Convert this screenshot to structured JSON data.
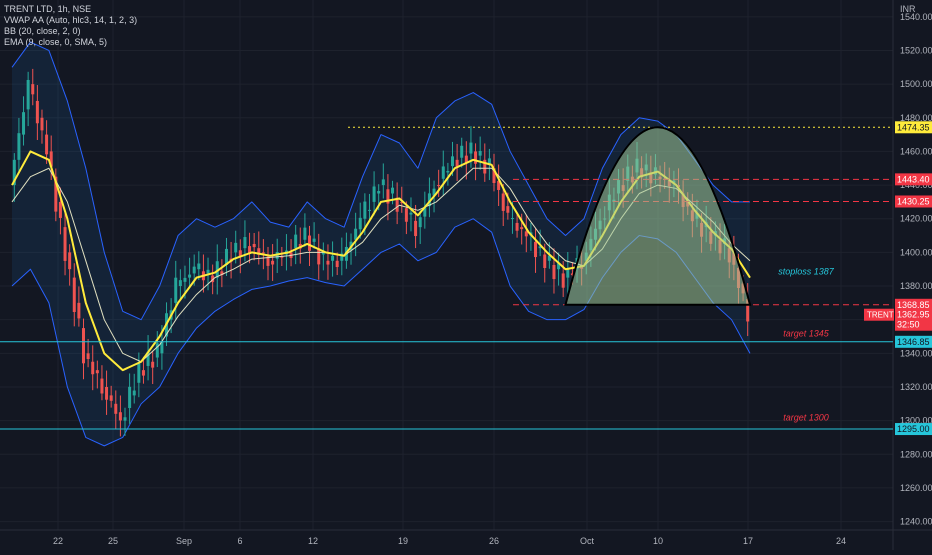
{
  "header": {
    "symbol": "TRENT LTD, 1h, NSE",
    "indicators": [
      "VWAP AA (Auto, hlc3, 14, 1, 2, 3)",
      "BB (20, close, 2, 0)",
      "EMA (9, close, 0, SMA, 5)"
    ],
    "currency": "INR"
  },
  "colors": {
    "background": "#131722",
    "up": "#26a69a",
    "down": "#ef5350",
    "bb_band": "#2962ff",
    "ema": "#ffeb3b",
    "vwap": "#e0e0c0",
    "level": "#26c6da",
    "dash_red": "#f23645",
    "dotted_yellow": "#ffeb3b"
  },
  "chart_data": {
    "type": "line",
    "title": "TRENT LTD, 1h, NSE",
    "ylim": [
      1235,
      1550
    ],
    "y_ticks": [
      1240,
      1260,
      1280,
      1300,
      1320,
      1340,
      1360,
      1380,
      1400,
      1420,
      1440,
      1460,
      1480,
      1500,
      1520,
      1540
    ],
    "x_ticks": [
      "22",
      "25",
      "Sep",
      "6",
      "12",
      "19",
      "26",
      "Oct",
      "10",
      "17",
      "24"
    ],
    "series": [
      {
        "role": "price",
        "values": [
          1440,
          1500,
          1460,
          1400,
          1340,
          1320,
          1300,
          1330,
          1340,
          1380,
          1390,
          1385,
          1400,
          1405,
          1395,
          1400,
          1410,
          1395,
          1395,
          1420,
          1440,
          1430,
          1415,
          1440,
          1455,
          1460,
          1450,
          1420,
          1410,
          1395,
          1385,
          1395,
          1420,
          1440,
          1450,
          1445,
          1440,
          1420,
          1410,
          1400,
          1363
        ]
      },
      {
        "role": "ema",
        "values": [
          1440,
          1460,
          1455,
          1420,
          1370,
          1340,
          1330,
          1335,
          1350,
          1370,
          1385,
          1388,
          1396,
          1400,
          1398,
          1400,
          1405,
          1400,
          1398,
          1412,
          1430,
          1432,
          1422,
          1435,
          1450,
          1455,
          1452,
          1430,
          1412,
          1400,
          1390,
          1392,
          1410,
          1430,
          1445,
          1448,
          1440,
          1425,
          1412,
          1402,
          1385
        ]
      },
      {
        "role": "vwap",
        "values": [
          1430,
          1445,
          1450,
          1430,
          1395,
          1360,
          1340,
          1335,
          1345,
          1362,
          1375,
          1385,
          1390,
          1396,
          1397,
          1398,
          1400,
          1400,
          1398,
          1406,
          1420,
          1428,
          1425,
          1430,
          1440,
          1450,
          1450,
          1438,
          1420,
          1405,
          1395,
          1392,
          1402,
          1420,
          1435,
          1440,
          1438,
          1428,
          1418,
          1405,
          1395
        ]
      },
      {
        "role": "bb_upper",
        "values": [
          1510,
          1525,
          1520,
          1490,
          1450,
          1400,
          1365,
          1360,
          1380,
          1410,
          1420,
          1415,
          1420,
          1430,
          1418,
          1415,
          1430,
          1420,
          1415,
          1445,
          1470,
          1465,
          1450,
          1480,
          1490,
          1495,
          1488,
          1460,
          1440,
          1420,
          1410,
          1420,
          1450,
          1470,
          1480,
          1478,
          1470,
          1455,
          1440,
          1430,
          1430
        ]
      },
      {
        "role": "bb_lower",
        "values": [
          1380,
          1390,
          1370,
          1320,
          1290,
          1285,
          1290,
          1310,
          1320,
          1340,
          1355,
          1365,
          1372,
          1378,
          1380,
          1383,
          1385,
          1382,
          1380,
          1390,
          1400,
          1405,
          1395,
          1400,
          1415,
          1420,
          1412,
          1380,
          1365,
          1360,
          1360,
          1366,
          1385,
          1400,
          1410,
          1408,
          1400,
          1385,
          1370,
          1360,
          1340
        ]
      }
    ],
    "levels": [
      {
        "price": 1474.35,
        "label": "1474.35",
        "style": "dotted",
        "color": "#ffeb3b"
      },
      {
        "price": 1443.4,
        "label": "1443.40",
        "style": "dashed",
        "color": "#f23645"
      },
      {
        "price": 1430.25,
        "label": "1430.25",
        "style": "dashed",
        "color": "#f23645"
      },
      {
        "price": 1368.85,
        "label": "1368.85",
        "style": "dashed",
        "color": "#f23645"
      },
      {
        "price": 1346.85,
        "label": "1346.85",
        "style": "solid",
        "color": "#26c6da"
      },
      {
        "price": 1295,
        "label": "1295.00",
        "style": "solid",
        "color": "#26c6da"
      }
    ],
    "annotations": [
      {
        "text": "stoploss 1387",
        "price": 1387,
        "color": "#26c6da"
      },
      {
        "text": "target 1345",
        "price": 1350,
        "color": "#f23645"
      },
      {
        "text": "target 1300",
        "price": 1300,
        "color": "#f23645"
      }
    ],
    "current_price": {
      "symbol": "TRENT",
      "price": "1362.95",
      "countdown": "32:50"
    },
    "arc": {
      "x_start_index": 30,
      "x_end_index": 40,
      "base_price": 1368.85,
      "peak_price": 1474.35
    }
  }
}
